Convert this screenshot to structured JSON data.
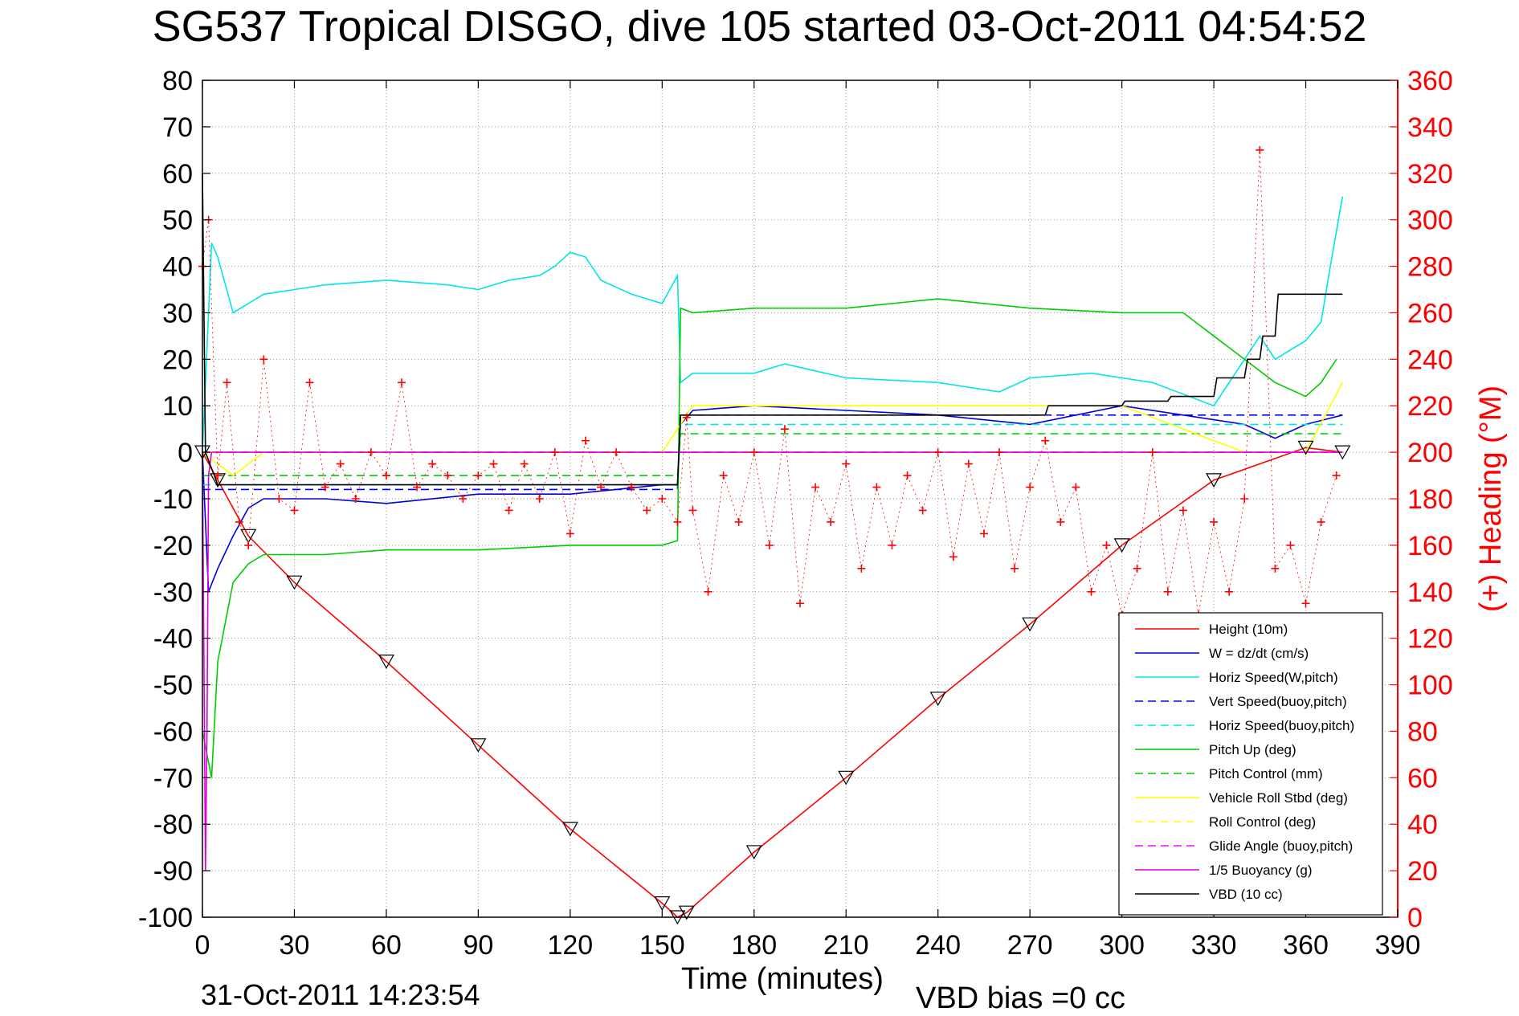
{
  "chart_data": {
    "type": "line",
    "title": "SG537 Tropical DISGO, dive 105 started 03-Oct-2011 04:54:52",
    "xlabel": "Time (minutes)",
    "ylabel_right": "(+) Heading (°M)",
    "xlim": [
      0,
      390
    ],
    "ylim_left": [
      -100,
      80
    ],
    "ylim_right": [
      0,
      360
    ],
    "x_ticks": [
      0,
      30,
      60,
      90,
      120,
      150,
      180,
      210,
      240,
      270,
      300,
      330,
      360,
      390
    ],
    "y_left_ticks": [
      -100,
      -90,
      -80,
      -70,
      -60,
      -50,
      -40,
      -30,
      -20,
      -10,
      0,
      10,
      20,
      30,
      40,
      50,
      60,
      70,
      80
    ],
    "y_right_ticks": [
      0,
      20,
      40,
      60,
      80,
      100,
      120,
      140,
      160,
      180,
      200,
      220,
      240,
      260,
      280,
      300,
      320,
      340,
      360
    ],
    "grid": true,
    "legend_position": "bottom-right",
    "footer_date": "31-Oct-2011 14:23:54",
    "footer_bias": "VBD bias =0 cc",
    "series": [
      {
        "name": "Height (10m)",
        "color": "#ff0000",
        "style": "solid",
        "x": [
          0,
          5,
          15,
          30,
          60,
          90,
          120,
          150,
          155,
          158,
          180,
          210,
          240,
          270,
          300,
          330,
          360,
          372
        ],
        "y": [
          0,
          -6,
          -18,
          -28,
          -45,
          -63,
          -81,
          -97,
          -100,
          -99,
          -86,
          -70,
          -53,
          -37,
          -20,
          -6,
          1,
          0
        ]
      },
      {
        "name": "W = dz/dt (cm/s)",
        "color": "#0000dd",
        "style": "solid",
        "x": [
          0,
          2,
          5,
          10,
          15,
          20,
          40,
          60,
          90,
          120,
          150,
          155,
          156,
          160,
          180,
          210,
          240,
          270,
          300,
          320,
          340,
          350,
          360,
          372
        ],
        "y": [
          0,
          -30,
          -25,
          -18,
          -12,
          -10,
          -10,
          -11,
          -9,
          -9,
          -7,
          -7,
          6,
          9,
          10,
          9,
          8,
          6,
          10,
          8,
          6,
          3,
          6,
          8
        ]
      },
      {
        "name": "Horiz Speed(W,pitch)",
        "color": "#00e5e5",
        "style": "solid",
        "x": [
          0,
          3,
          5,
          10,
          20,
          30,
          40,
          60,
          80,
          90,
          100,
          110,
          115,
          120,
          125,
          130,
          140,
          150,
          155,
          156,
          160,
          180,
          190,
          210,
          240,
          260,
          270,
          290,
          310,
          330,
          345,
          350,
          360,
          365,
          368,
          372
        ],
        "y": [
          0,
          45,
          42,
          30,
          34,
          35,
          36,
          37,
          36,
          35,
          37,
          38,
          40,
          43,
          42,
          37,
          34,
          32,
          38,
          15,
          17,
          17,
          19,
          16,
          15,
          13,
          16,
          17,
          15,
          10,
          25,
          20,
          24,
          28,
          40,
          55
        ]
      },
      {
        "name": "Vert Speed(buoy,pitch)",
        "color": "#0000ff",
        "style": "dashed",
        "x": [
          0,
          155,
          156,
          372
        ],
        "y": [
          -8,
          -8,
          8,
          8
        ]
      },
      {
        "name": "Horiz Speed(buoy,pitch)",
        "color": "#00e5e5",
        "style": "dashed",
        "x": [
          0,
          155,
          156,
          372
        ],
        "y": [
          -7,
          -7,
          6,
          6
        ]
      },
      {
        "name": "Pitch Up (deg)",
        "color": "#00cc00",
        "style": "solid",
        "x": [
          0,
          3,
          5,
          10,
          15,
          20,
          40,
          60,
          90,
          120,
          150,
          155,
          156,
          160,
          180,
          210,
          240,
          270,
          300,
          320,
          340,
          350,
          360,
          365,
          370
        ],
        "y": [
          -60,
          -70,
          -45,
          -28,
          -24,
          -22,
          -22,
          -21,
          -21,
          -20,
          -20,
          -19,
          31,
          30,
          31,
          31,
          33,
          31,
          30,
          30,
          20,
          15,
          12,
          15,
          20
        ]
      },
      {
        "name": "Pitch Control (mm)",
        "color": "#00cc00",
        "style": "dashed",
        "x": [
          0,
          155,
          156,
          372
        ],
        "y": [
          -5,
          -5,
          4,
          4
        ]
      },
      {
        "name": "Vehicle Roll Stbd (deg)",
        "color": "#ffff00",
        "style": "solid",
        "x": [
          0,
          10,
          20,
          60,
          100,
          150,
          160,
          200,
          250,
          300,
          340,
          360,
          372
        ],
        "y": [
          0,
          -5,
          0,
          0,
          0,
          0,
          10,
          10,
          10,
          10,
          0,
          0,
          15
        ]
      },
      {
        "name": "Roll Control (deg)",
        "color": "#ffff00",
        "style": "dashed",
        "x": [
          0,
          372
        ],
        "y": [
          0,
          0
        ]
      },
      {
        "name": "Glide Angle (buoy,pitch)",
        "color": "#ff00ff",
        "style": "dashed",
        "x": [
          0,
          372
        ],
        "y": [
          0,
          0
        ]
      },
      {
        "name": "1/5 Buoyancy (g)",
        "color": "#dd00dd",
        "style": "solid",
        "x": [
          0,
          1,
          1.5,
          2,
          3,
          372
        ],
        "y": [
          0,
          -90,
          -60,
          -5,
          0,
          0
        ]
      },
      {
        "name": "VBD (10 cc)",
        "color": "#000000",
        "style": "solid",
        "x": [
          0,
          1,
          5,
          155,
          156,
          275,
          276,
          300,
          301,
          315,
          316,
          330,
          331,
          340,
          341,
          345,
          346,
          350,
          351,
          372
        ],
        "y": [
          60,
          0,
          -7,
          -7,
          8,
          8,
          10,
          10,
          11,
          11,
          12,
          12,
          16,
          16,
          20,
          20,
          25,
          25,
          34,
          34
        ]
      }
    ],
    "heading": {
      "name": "(+) Heading",
      "color": "#ff0000",
      "marker": "+",
      "x": [
        0,
        2,
        5,
        8,
        12,
        15,
        20,
        25,
        30,
        35,
        40,
        45,
        50,
        55,
        60,
        65,
        70,
        75,
        80,
        85,
        90,
        95,
        100,
        105,
        110,
        115,
        120,
        125,
        130,
        135,
        140,
        145,
        150,
        155,
        158,
        160,
        165,
        170,
        175,
        180,
        185,
        190,
        195,
        200,
        205,
        210,
        215,
        220,
        225,
        230,
        235,
        240,
        245,
        250,
        255,
        260,
        265,
        270,
        275,
        280,
        285,
        290,
        295,
        300,
        305,
        310,
        315,
        320,
        325,
        330,
        335,
        340,
        345,
        350,
        355,
        360,
        365,
        370
      ],
      "y": [
        280,
        300,
        190,
        230,
        170,
        160,
        240,
        180,
        175,
        230,
        185,
        195,
        180,
        200,
        190,
        230,
        185,
        195,
        190,
        180,
        190,
        195,
        175,
        195,
        180,
        200,
        165,
        205,
        185,
        200,
        185,
        175,
        180,
        170,
        215,
        175,
        140,
        190,
        170,
        200,
        160,
        210,
        135,
        185,
        170,
        195,
        150,
        185,
        160,
        190,
        175,
        200,
        155,
        195,
        165,
        200,
        150,
        185,
        205,
        170,
        185,
        140,
        160,
        130,
        150,
        200,
        140,
        175,
        130,
        170,
        140,
        180,
        330,
        150,
        160,
        135,
        170,
        190
      ]
    }
  }
}
